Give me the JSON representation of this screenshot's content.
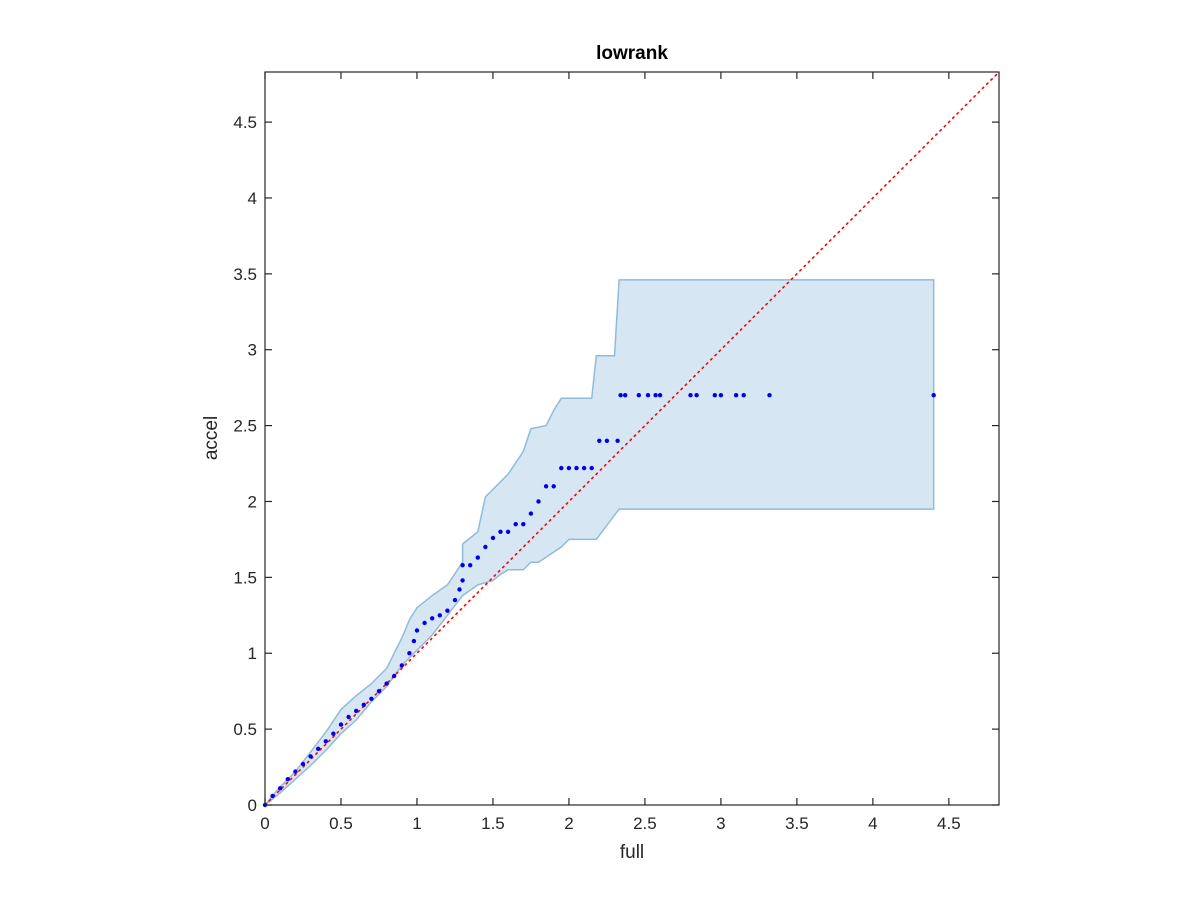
{
  "chart_data": {
    "type": "scatter",
    "title": "lowrank",
    "xlabel": "full",
    "ylabel": "accel",
    "xlim": [
      0,
      4.83
    ],
    "ylim": [
      0,
      4.83
    ],
    "xticks": [
      "0",
      "0.5",
      "1",
      "1.5",
      "2",
      "2.5",
      "3",
      "3.5",
      "4",
      "4.5"
    ],
    "yticks": [
      "0",
      "0.5",
      "1",
      "1.5",
      "2",
      "2.5",
      "3",
      "3.5",
      "4",
      "4.5"
    ],
    "grid": false,
    "reference_line": {
      "style": "dotted",
      "color": "#ff0000",
      "from": [
        0,
        0
      ],
      "to": [
        4.83,
        4.83
      ]
    },
    "band": {
      "color": "#d6e6f3",
      "edge_color": "#8fbcd8",
      "upper": [
        [
          0,
          0
        ],
        [
          0.1,
          0.12
        ],
        [
          0.2,
          0.22
        ],
        [
          0.3,
          0.35
        ],
        [
          0.4,
          0.48
        ],
        [
          0.5,
          0.63
        ],
        [
          0.6,
          0.72
        ],
        [
          0.7,
          0.8
        ],
        [
          0.8,
          0.9
        ],
        [
          0.9,
          1.1
        ],
        [
          0.95,
          1.22
        ],
        [
          1.0,
          1.3
        ],
        [
          1.1,
          1.38
        ],
        [
          1.2,
          1.45
        ],
        [
          1.3,
          1.6
        ],
        [
          1.3,
          1.72
        ],
        [
          1.4,
          1.8
        ],
        [
          1.45,
          2.03
        ],
        [
          1.6,
          2.18
        ],
        [
          1.7,
          2.33
        ],
        [
          1.75,
          2.48
        ],
        [
          1.85,
          2.5
        ],
        [
          1.9,
          2.6
        ],
        [
          1.95,
          2.68
        ],
        [
          2.15,
          2.68
        ],
        [
          2.18,
          2.96
        ],
        [
          2.3,
          2.96
        ],
        [
          2.33,
          3.46
        ],
        [
          4.4,
          3.46
        ]
      ],
      "lower": [
        [
          4.4,
          1.95
        ],
        [
          2.33,
          1.95
        ],
        [
          2.18,
          1.75
        ],
        [
          2.0,
          1.75
        ],
        [
          1.95,
          1.7
        ],
        [
          1.8,
          1.6
        ],
        [
          1.75,
          1.6
        ],
        [
          1.7,
          1.55
        ],
        [
          1.6,
          1.55
        ],
        [
          1.55,
          1.52
        ],
        [
          1.5,
          1.48
        ],
        [
          1.4,
          1.45
        ],
        [
          1.3,
          1.38
        ],
        [
          1.2,
          1.25
        ],
        [
          1.1,
          1.12
        ],
        [
          1.0,
          1.02
        ],
        [
          0.9,
          0.92
        ],
        [
          0.8,
          0.78
        ],
        [
          0.7,
          0.68
        ],
        [
          0.6,
          0.56
        ],
        [
          0.5,
          0.47
        ],
        [
          0.4,
          0.36
        ],
        [
          0.3,
          0.26
        ],
        [
          0.2,
          0.17
        ],
        [
          0.1,
          0.08
        ],
        [
          0,
          0
        ]
      ]
    },
    "series": [
      {
        "color": "#0000ee",
        "points": [
          [
            0.0,
            0.0
          ],
          [
            0.05,
            0.06
          ],
          [
            0.1,
            0.11
          ],
          [
            0.15,
            0.17
          ],
          [
            0.2,
            0.22
          ],
          [
            0.25,
            0.27
          ],
          [
            0.3,
            0.32
          ],
          [
            0.35,
            0.37
          ],
          [
            0.4,
            0.42
          ],
          [
            0.45,
            0.47
          ],
          [
            0.5,
            0.53
          ],
          [
            0.55,
            0.58
          ],
          [
            0.6,
            0.62
          ],
          [
            0.65,
            0.66
          ],
          [
            0.7,
            0.7
          ],
          [
            0.75,
            0.75
          ],
          [
            0.8,
            0.8
          ],
          [
            0.85,
            0.85
          ],
          [
            0.9,
            0.92
          ],
          [
            0.95,
            1.0
          ],
          [
            0.98,
            1.08
          ],
          [
            1.0,
            1.15
          ],
          [
            1.05,
            1.2
          ],
          [
            1.1,
            1.23
          ],
          [
            1.15,
            1.25
          ],
          [
            1.2,
            1.28
          ],
          [
            1.25,
            1.35
          ],
          [
            1.28,
            1.42
          ],
          [
            1.3,
            1.48
          ],
          [
            1.3,
            1.58
          ],
          [
            1.35,
            1.58
          ],
          [
            1.4,
            1.63
          ],
          [
            1.45,
            1.7
          ],
          [
            1.5,
            1.76
          ],
          [
            1.55,
            1.8
          ],
          [
            1.6,
            1.8
          ],
          [
            1.65,
            1.85
          ],
          [
            1.7,
            1.85
          ],
          [
            1.75,
            1.92
          ],
          [
            1.8,
            2.0
          ],
          [
            1.85,
            2.1
          ],
          [
            1.9,
            2.1
          ],
          [
            1.95,
            2.22
          ],
          [
            2.0,
            2.22
          ],
          [
            2.05,
            2.22
          ],
          [
            2.1,
            2.22
          ],
          [
            2.15,
            2.22
          ],
          [
            2.2,
            2.4
          ],
          [
            2.25,
            2.4
          ],
          [
            2.32,
            2.4
          ],
          [
            2.34,
            2.7
          ],
          [
            2.37,
            2.7
          ],
          [
            2.46,
            2.7
          ],
          [
            2.52,
            2.7
          ],
          [
            2.57,
            2.7
          ],
          [
            2.6,
            2.7
          ],
          [
            2.8,
            2.7
          ],
          [
            2.84,
            2.7
          ],
          [
            2.96,
            2.7
          ],
          [
            3.0,
            2.7
          ],
          [
            3.1,
            2.7
          ],
          [
            3.15,
            2.7
          ],
          [
            3.32,
            2.7
          ],
          [
            4.4,
            2.7
          ]
        ]
      }
    ]
  }
}
